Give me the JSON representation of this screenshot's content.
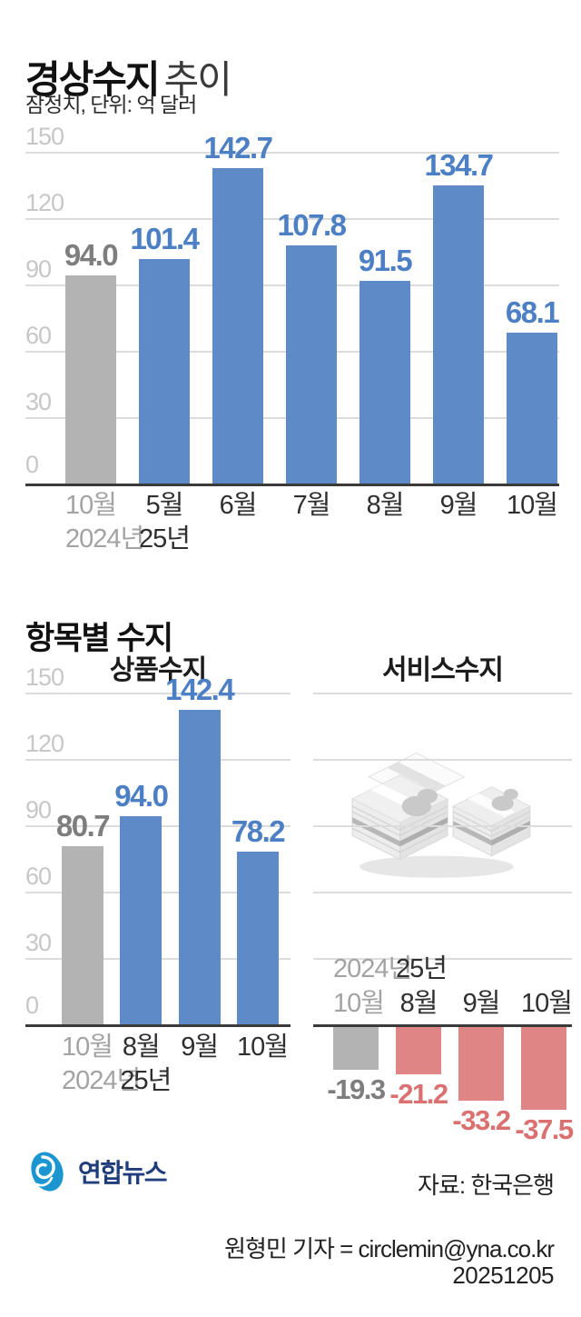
{
  "header": {
    "title_bold": "경상수지",
    "title_light": "추이",
    "subtitle": "잠정치, 단위: 억 달러"
  },
  "section2": {
    "title": "항목별 수지"
  },
  "colors": {
    "blue": "#5f8ac8",
    "blue_label": "#4c7fc4",
    "gray": "#b3b3b3",
    "gray_label": "#7e7e7e",
    "red": "#e08585",
    "red_label": "#db7070",
    "grid": "#dcdcdc",
    "tick": "#c7c7c7",
    "axis": "#3a3a3a"
  },
  "chart_data": [
    {
      "type": "bar",
      "id": "current-account",
      "title": "경상수지 추이",
      "ylabel": "억 달러",
      "ylim": [
        0,
        150
      ],
      "yticks": [
        150,
        120,
        90,
        60,
        30,
        0
      ],
      "show_ticks": true,
      "grid": true,
      "categories": [
        {
          "month": "10월",
          "year": "2024년",
          "muted": true
        },
        {
          "month": "5월",
          "year": "25년"
        },
        {
          "month": "6월"
        },
        {
          "month": "7월"
        },
        {
          "month": "8월"
        },
        {
          "month": "9월"
        },
        {
          "month": "10월"
        }
      ],
      "values": [
        94.0,
        101.4,
        142.7,
        107.8,
        91.5,
        134.7,
        68.1
      ],
      "labels": [
        "94.0",
        "101.4",
        "142.7",
        "107.8",
        "91.5",
        "134.7",
        "68.1"
      ],
      "bar_styles": [
        "gray",
        "blue",
        "blue",
        "blue",
        "blue",
        "blue",
        "blue"
      ]
    },
    {
      "type": "bar",
      "id": "goods-balance",
      "title": "상품수지",
      "ylim": [
        0,
        150
      ],
      "yticks": [
        150,
        120,
        90,
        60,
        30,
        0
      ],
      "show_ticks": true,
      "grid": true,
      "categories": [
        {
          "month": "10월",
          "year": "2024년",
          "muted": true
        },
        {
          "month": "8월",
          "year": "25년"
        },
        {
          "month": "9월"
        },
        {
          "month": "10월"
        }
      ],
      "values": [
        80.7,
        94.0,
        142.4,
        78.2
      ],
      "labels": [
        "80.7",
        "94.0",
        "142.4",
        "78.2"
      ],
      "bar_styles": [
        "gray",
        "blue",
        "blue",
        "blue"
      ]
    },
    {
      "type": "bar",
      "id": "services-balance",
      "title": "서비스수지",
      "ylim": [
        -150,
        0
      ],
      "yticks": [
        150,
        120,
        90,
        60,
        30
      ],
      "show_ticks": false,
      "grid": true,
      "icon": "money-stack-icon",
      "categories": [
        {
          "year": "2024년",
          "month": "10월",
          "muted": true
        },
        {
          "year": "25년",
          "month": "8월"
        },
        {
          "month": "9월"
        },
        {
          "month": "10월"
        }
      ],
      "values": [
        -19.3,
        -21.2,
        -33.2,
        -37.5
      ],
      "labels": [
        "-19.3",
        "-21.2",
        "-33.2",
        "-37.5"
      ],
      "bar_styles": [
        "gray",
        "red",
        "red",
        "red"
      ]
    }
  ],
  "footer": {
    "logo_text": "연합뉴스",
    "source": "자료: 한국은행",
    "credit": "원형민 기자 = circlemin@yna.co.kr",
    "date": "20251205"
  }
}
